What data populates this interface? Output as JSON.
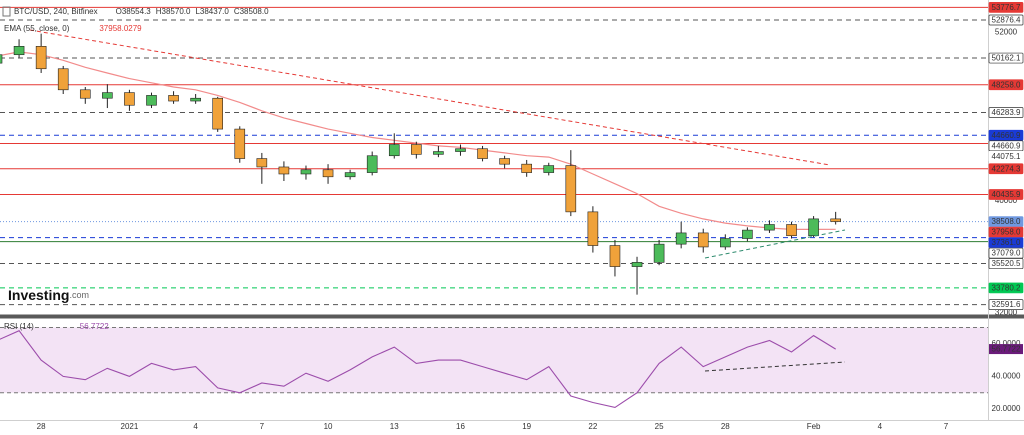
{
  "chart_data": [
    {
      "type": "candlestick",
      "title": "BTC/USD, 240, Bitfinex",
      "quote": [
        {
          "key": "O",
          "value": "38554.3"
        },
        {
          "key": "H",
          "value": "38570.0"
        },
        {
          "key": "L",
          "value": "38437.0"
        },
        {
          "key": "C",
          "value": "38508.0"
        }
      ],
      "watermark": [
        "Investing",
        ".com"
      ],
      "categories": [
        null,
        null,
        "28",
        null,
        null,
        null,
        "2021",
        null,
        null,
        "4",
        null,
        null,
        "7",
        null,
        null,
        "10",
        null,
        null,
        "13",
        null,
        null,
        "16",
        null,
        null,
        "19",
        null,
        null,
        "22",
        null,
        null,
        "25",
        null,
        null,
        "28",
        null,
        null,
        null,
        "Feb",
        null,
        null,
        "4",
        null,
        null,
        "7",
        null
      ],
      "open": [
        49800,
        50400,
        51000,
        49400,
        47900,
        47300,
        47700,
        46800,
        47500,
        47100,
        47300,
        45100,
        43000,
        42400,
        41900,
        42200,
        41700,
        42000,
        43200,
        44000,
        43300,
        43500,
        43700,
        43000,
        42600,
        42000,
        42500,
        39200,
        36800,
        35300,
        35600,
        36900,
        37700,
        36700,
        37300,
        37900,
        38300,
        37500,
        38700,
        null,
        null,
        null,
        null,
        null,
        null
      ],
      "high": [
        50700,
        51500,
        51900,
        49600,
        48100,
        48300,
        47900,
        47700,
        47800,
        47600,
        47400,
        45300,
        43400,
        42800,
        42500,
        42600,
        42200,
        43500,
        44800,
        44200,
        43900,
        44000,
        43900,
        43200,
        42900,
        42700,
        43600,
        39600,
        37200,
        36000,
        37200,
        38500,
        38000,
        37600,
        38100,
        38600,
        38500,
        38900,
        39200,
        null,
        null,
        null,
        null,
        null,
        null
      ],
      "low": [
        49500,
        50200,
        49100,
        47600,
        46900,
        46600,
        46400,
        46600,
        46900,
        46900,
        44900,
        42700,
        41200,
        41400,
        41500,
        41200,
        41500,
        41800,
        43000,
        43000,
        43100,
        43200,
        42800,
        42300,
        41700,
        41800,
        38900,
        36300,
        34600,
        33300,
        35400,
        36600,
        36300,
        36500,
        37100,
        37700,
        37300,
        37400,
        38300,
        null,
        null,
        null,
        null,
        null,
        null
      ],
      "close": [
        50400,
        51000,
        49400,
        47900,
        47300,
        47700,
        46800,
        47500,
        47100,
        47300,
        45100,
        43000,
        42400,
        41900,
        42200,
        41700,
        42000,
        43200,
        44000,
        43300,
        43500,
        43700,
        43000,
        42600,
        42000,
        42500,
        39200,
        36800,
        35300,
        35600,
        36900,
        37700,
        36700,
        37300,
        37900,
        38300,
        37500,
        38700,
        38508,
        null,
        null,
        null,
        null,
        null,
        null
      ],
      "up_color": "#4cbb5a",
      "down_color": "#f0a23a",
      "overlay": {
        "name": "EMA (55, close, 0)",
        "color": "#f28b8b",
        "values": [
          50300,
          50600,
          50400,
          50000,
          49500,
          49100,
          48700,
          48400,
          48100,
          47900,
          47500,
          47000,
          46400,
          45900,
          45500,
          45100,
          44800,
          44500,
          44300,
          44100,
          43900,
          43800,
          43600,
          43400,
          43200,
          43100,
          42600,
          41900,
          41200,
          40500,
          39600,
          39100,
          38700,
          38400,
          38200,
          38050,
          37950,
          37950,
          37958.0279,
          null,
          null,
          null,
          null,
          null,
          null
        ]
      },
      "ylim": [
        31850,
        54300
      ],
      "yticks": [
        52000,
        40000,
        32000
      ],
      "levels": [
        {
          "value": 53776.7,
          "color": "#e53935",
          "line": "solid",
          "tag": "filled"
        },
        {
          "value": 52876.4,
          "color": "#555555",
          "line": "dashed",
          "tag": "outline"
        },
        {
          "value": 50162.1,
          "color": "#555555",
          "line": "dashed",
          "tag": "outline"
        },
        {
          "value": 48258,
          "label": "48258.0",
          "color": "#e53935",
          "line": "solid",
          "tag": "filled"
        },
        {
          "value": 46283.9,
          "color": "#555555",
          "line": "dashed",
          "tag": "outline"
        },
        {
          "value": 44660.9,
          "color": "#1a3bd6",
          "line": "dashed",
          "tag": "filled"
        },
        {
          "value": 44660.9,
          "color": "#555555",
          "line": "none",
          "tag": "outline"
        },
        {
          "value": 44075.1,
          "color": "#e53935",
          "line": "solid",
          "tag": "text"
        },
        {
          "value": 42274.3,
          "color": "#e53935",
          "line": "solid",
          "tag": "filled"
        },
        {
          "value": 40435.9,
          "color": "#e53935",
          "line": "solid",
          "tag": "filled"
        },
        {
          "value": 38508,
          "label": "38508.0",
          "color": "#6f98e0",
          "line": "dotted",
          "tag": "filled"
        },
        {
          "value": 37958.0279,
          "label": "37958.0",
          "color": "#e53935",
          "line": "none",
          "tag": "filled"
        },
        {
          "value": 37361,
          "label": "37361.0",
          "color": "#1a3bd6",
          "line": "dashed",
          "tag": "filled"
        },
        {
          "value": 37079,
          "label": "37079.0",
          "color": "#2e7d32",
          "line": "solid",
          "tag": "outline"
        },
        {
          "value": 35520.5,
          "color": "#555555",
          "line": "dashed",
          "tag": "outline"
        },
        {
          "value": 33780.2,
          "color": "#00c853",
          "line": "dashed",
          "tag": "filled"
        },
        {
          "value": 32591.6,
          "color": "#555555",
          "line": "dashed",
          "tag": "outline"
        }
      ]
    },
    {
      "type": "line",
      "name": "RSI (14)",
      "color": "#9c4dab",
      "values": [
        62,
        68,
        50,
        40,
        38,
        45,
        40,
        48,
        44,
        46,
        33,
        30,
        36,
        34,
        42,
        37,
        44,
        52,
        58,
        48,
        50,
        50,
        46,
        42,
        38,
        46,
        28,
        24,
        21,
        30,
        48,
        58,
        46,
        52,
        58,
        62,
        55,
        65,
        56.7722,
        null,
        null,
        null,
        null,
        null,
        null
      ],
      "ylim": [
        13.3,
        75.2
      ],
      "yticks": [
        {
          "value": 60,
          "label": "60.0000"
        },
        {
          "value": 40,
          "label": "40.0000"
        },
        {
          "value": 20,
          "label": "20.0000"
        }
      ],
      "band": [
        30,
        70
      ],
      "band_color": "#f3e3f5"
    }
  ]
}
